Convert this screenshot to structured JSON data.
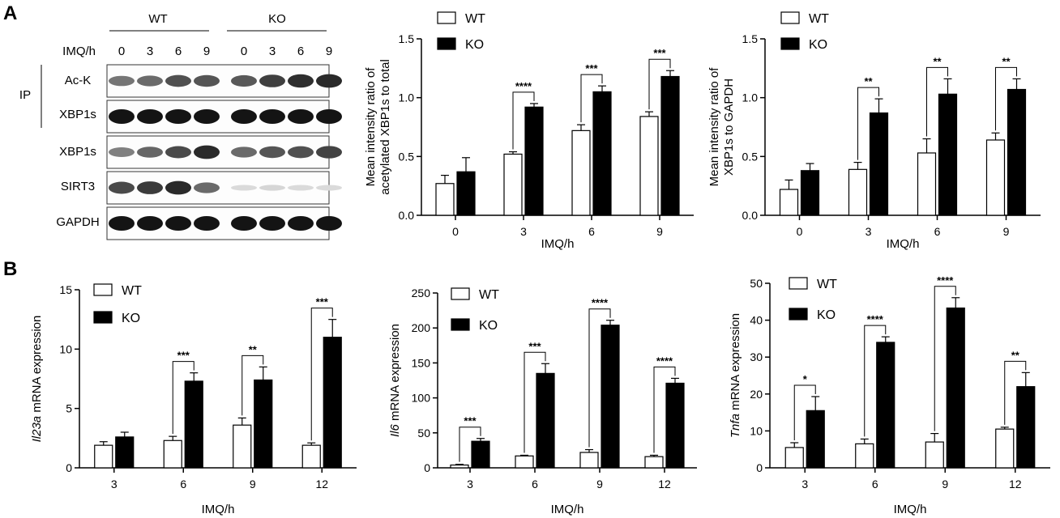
{
  "panels": {
    "a": "A",
    "b": "B"
  },
  "blot": {
    "groups": [
      "WT",
      "KO"
    ],
    "time_label": "IMQ/h",
    "lanes": [
      "0",
      "3",
      "6",
      "9",
      "0",
      "3",
      "6",
      "9"
    ],
    "ip_label": "IP",
    "rows": [
      {
        "label": "Ac-K",
        "wt": [
          0.55,
          0.6,
          0.72,
          0.7
        ],
        "ko": [
          0.68,
          0.8,
          0.88,
          0.9
        ]
      },
      {
        "label": "XBP1s",
        "wt": [
          1,
          1,
          1,
          1
        ],
        "ko": [
          1,
          1,
          1,
          1
        ]
      },
      {
        "label": "XBP1s",
        "wt": [
          0.5,
          0.62,
          0.75,
          0.9
        ],
        "ko": [
          0.6,
          0.7,
          0.72,
          0.78
        ]
      },
      {
        "label": "SIRT3",
        "wt": [
          0.75,
          0.82,
          0.9,
          0.6
        ],
        "ko": [
          0.08,
          0.1,
          0.08,
          0.08
        ]
      },
      {
        "label": "GAPDH",
        "wt": [
          1,
          1,
          1,
          1
        ],
        "ko": [
          1,
          1,
          1,
          1
        ]
      }
    ]
  },
  "chart_data": [
    {
      "type": "bar",
      "categories": [
        "0",
        "3",
        "6",
        "9"
      ],
      "series": [
        {
          "name": "WT",
          "values": [
            0.27,
            0.52,
            0.72,
            0.84
          ],
          "errors": [
            0.07,
            0.02,
            0.05,
            0.04
          ],
          "color": "#ffffff"
        },
        {
          "name": "KO",
          "values": [
            0.37,
            0.92,
            1.05,
            1.18
          ],
          "errors": [
            0.12,
            0.03,
            0.05,
            0.05
          ],
          "color": "#000000"
        }
      ],
      "ylabel": [
        "Mean intensity ratio of",
        "acetylated XBP1s to total"
      ],
      "xlabel": "IMQ/h",
      "ylim": [
        0,
        1.5
      ],
      "yticks": [
        "0.0",
        "0.5",
        "1.0",
        "1.5"
      ],
      "legend": "top-left",
      "significance": [
        {
          "category": "3",
          "label": "****"
        },
        {
          "category": "6",
          "label": "***"
        },
        {
          "category": "9",
          "label": "***"
        }
      ]
    },
    {
      "type": "bar",
      "categories": [
        "0",
        "3",
        "6",
        "9"
      ],
      "series": [
        {
          "name": "WT",
          "values": [
            0.22,
            0.39,
            0.53,
            0.64
          ],
          "errors": [
            0.08,
            0.06,
            0.12,
            0.06
          ],
          "color": "#ffffff"
        },
        {
          "name": "KO",
          "values": [
            0.38,
            0.87,
            1.03,
            1.07
          ],
          "errors": [
            0.06,
            0.12,
            0.13,
            0.09
          ],
          "color": "#000000"
        }
      ],
      "ylabel": [
        "Mean intensity ratio of",
        "XBP1s to GAPDH"
      ],
      "xlabel": "IMQ/h",
      "ylim": [
        0,
        1.5
      ],
      "yticks": [
        "0.0",
        "0.5",
        "1.0",
        "1.5"
      ],
      "legend": "top-left",
      "significance": [
        {
          "category": "3",
          "label": "**"
        },
        {
          "category": "6",
          "label": "**"
        },
        {
          "category": "9",
          "label": "**"
        }
      ]
    },
    {
      "type": "bar",
      "categories": [
        "3",
        "6",
        "9",
        "12"
      ],
      "series": [
        {
          "name": "WT",
          "values": [
            1.9,
            2.3,
            3.6,
            1.9
          ],
          "errors": [
            0.3,
            0.35,
            0.6,
            0.2
          ],
          "color": "#ffffff"
        },
        {
          "name": "KO",
          "values": [
            2.6,
            7.3,
            7.4,
            11.0
          ],
          "errors": [
            0.4,
            0.7,
            1.1,
            1.5
          ],
          "color": "#000000"
        }
      ],
      "ylabel_italic": "Il23a",
      "ylabel": " mRNA expression",
      "xlabel": "IMQ/h",
      "ylim": [
        0,
        15
      ],
      "yticks": [
        "0",
        "5",
        "10",
        "15"
      ],
      "legend": "top-left",
      "significance": [
        {
          "category": "6",
          "label": "***"
        },
        {
          "category": "9",
          "label": "**"
        },
        {
          "category": "12",
          "label": "***"
        }
      ]
    },
    {
      "type": "bar",
      "categories": [
        "3",
        "6",
        "9",
        "12"
      ],
      "series": [
        {
          "name": "WT",
          "values": [
            4,
            17,
            22,
            16
          ],
          "errors": [
            1,
            1,
            4,
            2
          ],
          "color": "#ffffff"
        },
        {
          "name": "KO",
          "values": [
            38,
            135,
            204,
            121
          ],
          "errors": [
            4,
            14,
            7,
            7
          ],
          "color": "#000000"
        }
      ],
      "ylabel_italic": "Il6",
      "ylabel": " mRNA expression",
      "xlabel": "IMQ/h",
      "ylim": [
        0,
        250
      ],
      "yticks": [
        "0",
        "50",
        "100",
        "150",
        "200",
        "250"
      ],
      "legend": "top-left",
      "significance": [
        {
          "category": "3",
          "label": "***"
        },
        {
          "category": "6",
          "label": "***"
        },
        {
          "category": "9",
          "label": "****"
        },
        {
          "category": "12",
          "label": "****"
        }
      ]
    },
    {
      "type": "bar",
      "categories": [
        "3",
        "6",
        "9",
        "12"
      ],
      "series": [
        {
          "name": "WT",
          "values": [
            5.5,
            6.5,
            7.0,
            10.5
          ],
          "errors": [
            1.3,
            1.3,
            2.3,
            0.5
          ],
          "color": "#ffffff"
        },
        {
          "name": "KO",
          "values": [
            15.5,
            34.0,
            43.3,
            22.0
          ],
          "errors": [
            3.8,
            1.5,
            2.8,
            3.8
          ],
          "color": "#000000"
        }
      ],
      "ylabel_italic": "Tnfa",
      "ylabel": " mRNA expression",
      "xlabel": "IMQ/h",
      "ylim": [
        0,
        50
      ],
      "yticks": [
        "0",
        "10",
        "20",
        "30",
        "40",
        "50"
      ],
      "legend": "top-left",
      "significance": [
        {
          "category": "3",
          "label": "*"
        },
        {
          "category": "6",
          "label": "****"
        },
        {
          "category": "9",
          "label": "****"
        },
        {
          "category": "12",
          "label": "**"
        }
      ]
    }
  ]
}
